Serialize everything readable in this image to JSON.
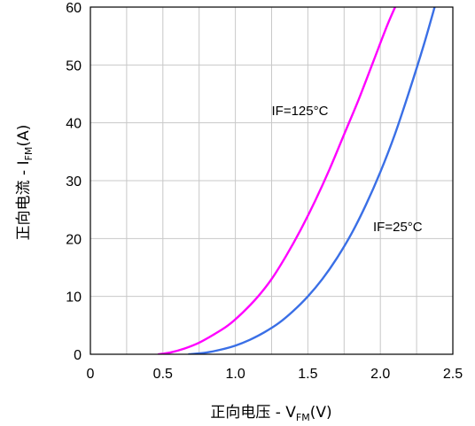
{
  "chart_data": {
    "type": "line",
    "xlabel": {
      "main": "正向电压 - V",
      "sub": "FM",
      "suffix": "(V)"
    },
    "ylabel": {
      "main": "正向电流 - I",
      "sub": "FM",
      "suffix": "(A)"
    },
    "xlim": [
      0,
      2.5
    ],
    "ylim": [
      0,
      60
    ],
    "x_ticks": [
      0,
      0.5,
      1.0,
      1.5,
      2.0,
      2.5
    ],
    "x_tick_labels": [
      "0",
      "0.5",
      "1.0",
      "1.5",
      "2.0",
      "2.5"
    ],
    "y_ticks": [
      0,
      10,
      20,
      30,
      40,
      50,
      60
    ],
    "y_tick_labels": [
      "0",
      "10",
      "20",
      "30",
      "40",
      "50",
      "60"
    ],
    "grid": true,
    "series": [
      {
        "name": "IF=125°C",
        "color": "#ff00ff",
        "points": [
          [
            0.47,
            0
          ],
          [
            0.55,
            0.3
          ],
          [
            0.65,
            1
          ],
          [
            0.75,
            2
          ],
          [
            0.85,
            3.4
          ],
          [
            0.95,
            5
          ],
          [
            1.05,
            7.2
          ],
          [
            1.15,
            9.8
          ],
          [
            1.25,
            13
          ],
          [
            1.35,
            17
          ],
          [
            1.45,
            21.5
          ],
          [
            1.55,
            26.5
          ],
          [
            1.65,
            32
          ],
          [
            1.75,
            38
          ],
          [
            1.85,
            44
          ],
          [
            1.95,
            50.5
          ],
          [
            2.05,
            57
          ],
          [
            2.12,
            61
          ]
        ]
      },
      {
        "name": "IF=25°C",
        "color": "#3a6fe6",
        "points": [
          [
            0.68,
            0
          ],
          [
            0.8,
            0.3
          ],
          [
            0.9,
            0.8
          ],
          [
            1.0,
            1.5
          ],
          [
            1.1,
            2.5
          ],
          [
            1.2,
            3.8
          ],
          [
            1.3,
            5.4
          ],
          [
            1.4,
            7.5
          ],
          [
            1.5,
            10
          ],
          [
            1.6,
            13
          ],
          [
            1.7,
            16.6
          ],
          [
            1.8,
            20.8
          ],
          [
            1.9,
            25.8
          ],
          [
            2.0,
            31.5
          ],
          [
            2.1,
            38
          ],
          [
            2.2,
            45.5
          ],
          [
            2.3,
            53.5
          ],
          [
            2.38,
            60.5
          ]
        ]
      }
    ],
    "annotations": [
      {
        "text": "IF=125°C",
        "x": 1.25,
        "y": 41.3
      },
      {
        "text": "IF=25°C",
        "x": 1.95,
        "y": 21.3
      }
    ]
  }
}
